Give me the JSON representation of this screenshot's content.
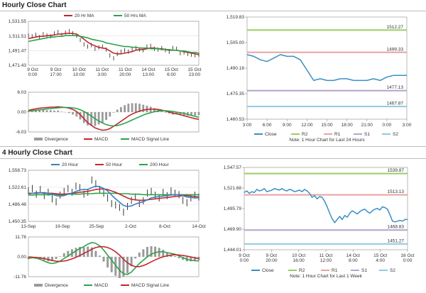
{
  "section1": {
    "title": "Hourly Close Chart"
  },
  "section2": {
    "title": "4 Hourly Close Chart"
  },
  "colors": {
    "price": "#222222",
    "ma_short": "#c0282d",
    "ma_long": "#2ca24a",
    "ma_200": "#3a7fc1",
    "divergence": "#9a9a9a",
    "close": "#3a8fc4",
    "r2": "#9ccc65",
    "r1": "#e8a3a3",
    "s1": "#b7a3c8",
    "s2": "#8fcbe0",
    "grid": "#d8d8d8"
  },
  "chart_data": [
    {
      "id": "h1_price",
      "type": "line",
      "title": "Hourly Close Chart",
      "legend": [
        "20 Hr MA",
        "50 Hrs MA"
      ],
      "yticks": [
        "1,531.55",
        "1,511.51",
        "1,491.47",
        "1,471.43"
      ],
      "ylim": [
        1471.43,
        1531.55
      ],
      "xticks": [
        [
          "9 Oct",
          "0:00"
        ],
        [
          "9 Oct",
          "17:00"
        ],
        [
          "10 Oct",
          "10:00"
        ],
        [
          "11 Oct",
          "3:00"
        ],
        [
          "11 Oct",
          "20:00"
        ],
        [
          "14 Oct",
          "13:00"
        ],
        [
          "15 Oct",
          "6:00"
        ],
        [
          "15 Oct",
          "23:00"
        ]
      ],
      "series": [
        {
          "name": "Price",
          "values": [
            1512,
            1511,
            1513,
            1510,
            1514,
            1512,
            1511,
            1515,
            1517,
            1513,
            1516,
            1518,
            1515,
            1512,
            1506,
            1500,
            1497,
            1499,
            1494,
            1496,
            1497,
            1493,
            1485,
            1481,
            1487,
            1490,
            1492,
            1490,
            1494,
            1495,
            1493,
            1492,
            1497,
            1498,
            1494,
            1493,
            1495,
            1492,
            1490,
            1495,
            1494,
            1488,
            1489,
            1487,
            1486,
            1485,
            1486
          ]
        },
        {
          "name": "20 Hr MA",
          "values": [
            1508,
            1509,
            1510,
            1511,
            1511,
            1512,
            1512,
            1513,
            1514,
            1514,
            1515,
            1515,
            1515,
            1514,
            1511,
            1507,
            1503,
            1500,
            1498,
            1496,
            1495,
            1494,
            1491,
            1488,
            1487,
            1487,
            1488,
            1489,
            1490,
            1492,
            1493,
            1493,
            1494,
            1495,
            1495,
            1494,
            1494,
            1493,
            1492,
            1492,
            1492,
            1491,
            1490,
            1489,
            1488,
            1487,
            1486
          ]
        },
        {
          "name": "50 Hrs MA",
          "values": [
            1504,
            1505,
            1506,
            1507,
            1508,
            1509,
            1510,
            1510,
            1511,
            1511,
            1512,
            1512,
            1512,
            1512,
            1511,
            1510,
            1509,
            1507,
            1506,
            1505,
            1504,
            1502,
            1501,
            1500,
            1499,
            1498,
            1497,
            1497,
            1496,
            1496,
            1495,
            1495,
            1495,
            1494,
            1494,
            1494,
            1493,
            1493,
            1493,
            1492,
            1492,
            1491,
            1491,
            1490,
            1489,
            1489,
            1488
          ]
        }
      ]
    },
    {
      "id": "h1_macd",
      "type": "line",
      "legend": [
        "Divergence",
        "MACD",
        "MACD Signal Line"
      ],
      "yticks": [
        "6.03",
        "0.00",
        "-6.03"
      ],
      "ylim": [
        -6.03,
        6.03
      ],
      "series": [
        {
          "name": "MACD",
          "values": [
            0.5,
            0.8,
            1.0,
            1.2,
            1.3,
            1.4,
            1.5,
            1.5,
            1.6,
            1.5,
            1.4,
            1.2,
            0.8,
            0.2,
            -0.8,
            -2.0,
            -3.2,
            -4.0,
            -4.8,
            -5.2,
            -5.5,
            -5.4,
            -5.0,
            -4.3,
            -3.6,
            -2.8,
            -2.0,
            -1.2,
            -0.6,
            -0.1,
            0.3,
            0.6,
            0.8,
            0.9,
            0.9,
            0.8,
            0.6,
            0.3,
            0.0,
            -0.3,
            -0.5,
            -0.8,
            -1.1,
            -1.4,
            -1.7,
            -2.0,
            -2.2
          ]
        },
        {
          "name": "MACD Signal Line",
          "values": [
            0.3,
            0.4,
            0.5,
            0.7,
            0.8,
            1.0,
            1.1,
            1.2,
            1.3,
            1.4,
            1.4,
            1.4,
            1.3,
            1.1,
            0.7,
            0.2,
            -0.5,
            -1.2,
            -2.0,
            -2.7,
            -3.3,
            -3.8,
            -4.1,
            -4.2,
            -4.1,
            -3.8,
            -3.4,
            -2.9,
            -2.4,
            -1.9,
            -1.4,
            -0.9,
            -0.5,
            -0.2,
            0.1,
            0.3,
            0.4,
            0.4,
            0.3,
            0.2,
            0.0,
            -0.2,
            -0.4,
            -0.7,
            -1.0,
            -1.3,
            -1.6
          ]
        }
      ]
    },
    {
      "id": "h1_close",
      "type": "line",
      "legend": [
        "Close",
        "R2",
        "R1",
        "S1",
        "S2"
      ],
      "note": "Note: 1 Hour Chart for Last 24 Hours",
      "yticks": [
        "1,519.83",
        "1,505.00",
        "1,490.18",
        "1,475.35",
        "1,460.53"
      ],
      "ylim": [
        1460.53,
        1519.83
      ],
      "xticks": [
        "3:00",
        "6:00",
        "9:00",
        "12:00",
        "15:00",
        "18:00",
        "21:00",
        "0:00",
        "3:00"
      ],
      "levels": [
        {
          "name": "R2",
          "value": 1512.27,
          "label": "1512.27"
        },
        {
          "name": "R1",
          "value": 1499.33,
          "label": "1499.33"
        },
        {
          "name": "S1",
          "value": 1477.13,
          "label": "1477.13"
        },
        {
          "name": "S2",
          "value": 1467.87,
          "label": "1467.87"
        }
      ],
      "series": [
        {
          "name": "Close",
          "values": [
            1498,
            1497,
            1495,
            1494,
            1496,
            1498,
            1497,
            1497,
            1495,
            1489,
            1483,
            1484,
            1483,
            1483,
            1484,
            1484,
            1483,
            1483,
            1483,
            1484,
            1483,
            1485,
            1486,
            1486,
            1486
          ]
        }
      ]
    },
    {
      "id": "h4_price",
      "type": "line",
      "title": "4 Hourly Close Chart",
      "legend": [
        "20 Hour",
        "50 Hour",
        "200 Hour"
      ],
      "yticks": [
        "1,558.73",
        "1,522.61",
        "1,486.48",
        "1,450.35"
      ],
      "ylim": [
        1450.35,
        1558.73
      ],
      "xticks": [
        "13-Sep",
        "19-Sep",
        "25-Sep",
        "2-Oct",
        "8-Oct",
        "14-Oct"
      ],
      "series": [
        {
          "name": "Price",
          "values": [
            1515,
            1520,
            1508,
            1518,
            1505,
            1512,
            1498,
            1492,
            1506,
            1514,
            1520,
            1512,
            1525,
            1522,
            1508,
            1512,
            1538,
            1530,
            1518,
            1510,
            1500,
            1488,
            1485,
            1480,
            1470,
            1482,
            1495,
            1502,
            1488,
            1494,
            1510,
            1514,
            1506,
            1500,
            1512,
            1505,
            1515,
            1510,
            1507,
            1495,
            1490,
            1500,
            1506,
            1502
          ]
        },
        {
          "name": "20 Hour",
          "values": [
            1508,
            1510,
            1510,
            1511,
            1510,
            1510,
            1508,
            1505,
            1504,
            1505,
            1508,
            1510,
            1514,
            1517,
            1518,
            1518,
            1522,
            1525,
            1524,
            1520,
            1515,
            1506,
            1498,
            1491,
            1484,
            1482,
            1483,
            1487,
            1490,
            1492,
            1496,
            1500,
            1502,
            1503,
            1504,
            1505,
            1506,
            1507,
            1507,
            1505,
            1502,
            1501,
            1500,
            1500
          ]
        },
        {
          "name": "50 Hour",
          "values": [
            1510,
            1510,
            1511,
            1511,
            1511,
            1510,
            1510,
            1509,
            1508,
            1508,
            1509,
            1510,
            1511,
            1512,
            1513,
            1514,
            1516,
            1518,
            1519,
            1519,
            1518,
            1515,
            1512,
            1508,
            1504,
            1500,
            1497,
            1496,
            1495,
            1495,
            1496,
            1497,
            1498,
            1499,
            1500,
            1501,
            1502,
            1503,
            1504,
            1505,
            1505,
            1504,
            1503,
            1502
          ]
        },
        {
          "name": "200 Hour",
          "values": [
            1506,
            1506,
            1507,
            1507,
            1507,
            1507,
            1507,
            1507,
            1507,
            1507,
            1508,
            1508,
            1508,
            1508,
            1509,
            1509,
            1509,
            1510,
            1510,
            1510,
            1510,
            1510,
            1510,
            1509,
            1509,
            1509,
            1508,
            1508,
            1508,
            1507,
            1507,
            1507,
            1507,
            1507,
            1507,
            1507,
            1507,
            1507,
            1507,
            1507,
            1507,
            1507,
            1507,
            1507
          ]
        }
      ]
    },
    {
      "id": "h4_macd",
      "type": "line",
      "legend": [
        "Divergence",
        "MACD",
        "MACD Signal Line"
      ],
      "yticks": [
        "11.76",
        "0.00",
        "-11.76"
      ],
      "ylim": [
        -11.76,
        11.76
      ],
      "series": [
        {
          "name": "MACD",
          "values": [
            -1.0,
            -0.5,
            -0.8,
            -1.5,
            -2.5,
            -3.5,
            -4.0,
            -3.5,
            -2.5,
            -1.0,
            0.5,
            2.0,
            3.5,
            5.0,
            6.0,
            7.5,
            8.5,
            8.0,
            6.5,
            4.0,
            1.0,
            -2.0,
            -5.0,
            -8.0,
            -10.0,
            -10.5,
            -9.0,
            -6.5,
            -4.0,
            -2.0,
            0.0,
            1.5,
            2.5,
            3.0,
            3.0,
            2.5,
            2.0,
            1.5,
            0.5,
            -0.5,
            -1.5,
            -2.0,
            -2.3,
            -2.5
          ]
        },
        {
          "name": "MACD Signal Line",
          "values": [
            0.0,
            -0.2,
            -0.4,
            -0.7,
            -1.1,
            -1.6,
            -2.2,
            -2.6,
            -2.7,
            -2.5,
            -2.0,
            -1.2,
            -0.3,
            0.8,
            2.0,
            3.2,
            4.5,
            5.5,
            6.0,
            6.0,
            5.5,
            4.5,
            3.0,
            1.0,
            -1.5,
            -3.5,
            -5.0,
            -5.8,
            -5.8,
            -5.2,
            -4.2,
            -3.0,
            -1.8,
            -0.8,
            0.0,
            0.6,
            1.0,
            1.2,
            1.1,
            0.8,
            0.4,
            -0.1,
            -0.6,
            -1.0
          ]
        }
      ]
    },
    {
      "id": "h4_close",
      "type": "line",
      "legend": [
        "Close",
        "R2",
        "R1",
        "S1",
        "S2"
      ],
      "note": "Note: 1 Hour Chart for Last 1 Week",
      "yticks": [
        "1,547.57",
        "1,521.68",
        "1,495.79",
        "1,469.90",
        "1,444.01"
      ],
      "ylim": [
        1444.01,
        1547.57
      ],
      "xticks": [
        [
          "9 Oct",
          "0:00"
        ],
        [
          "9 Oct",
          "20:00"
        ],
        [
          "10 Oct",
          "16:00"
        ],
        [
          "11 Oct",
          "12:00"
        ],
        [
          "14 Oct",
          "8:00"
        ],
        [
          "15 Oct",
          "4:00"
        ],
        [
          "16 Oct",
          "0:00"
        ]
      ],
      "levels": [
        {
          "name": "R2",
          "value": 1539.87,
          "label": "1539.87"
        },
        {
          "name": "R1",
          "value": 1513.13,
          "label": "1513.13"
        },
        {
          "name": "S1",
          "value": 1468.83,
          "label": "1468.83"
        },
        {
          "name": "S2",
          "value": 1451.27,
          "label": "1451.27"
        }
      ],
      "series": [
        {
          "name": "Close",
          "values": [
            1516,
            1518,
            1515,
            1517,
            1516,
            1520,
            1518,
            1519,
            1521,
            1517,
            1518,
            1519,
            1521,
            1520,
            1519,
            1521,
            1519,
            1518,
            1520,
            1519,
            1517,
            1518,
            1519,
            1517,
            1520,
            1518,
            1515,
            1510,
            1512,
            1508,
            1511,
            1510,
            1505,
            1498,
            1490,
            1483,
            1478,
            1482,
            1486,
            1482,
            1487,
            1485,
            1490,
            1493,
            1491,
            1489,
            1492,
            1494,
            1495,
            1492,
            1490,
            1493,
            1495,
            1496,
            1494,
            1498,
            1497,
            1495,
            1488,
            1480,
            1479,
            1480,
            1481,
            1480,
            1482,
            1482
          ]
        }
      ]
    }
  ]
}
